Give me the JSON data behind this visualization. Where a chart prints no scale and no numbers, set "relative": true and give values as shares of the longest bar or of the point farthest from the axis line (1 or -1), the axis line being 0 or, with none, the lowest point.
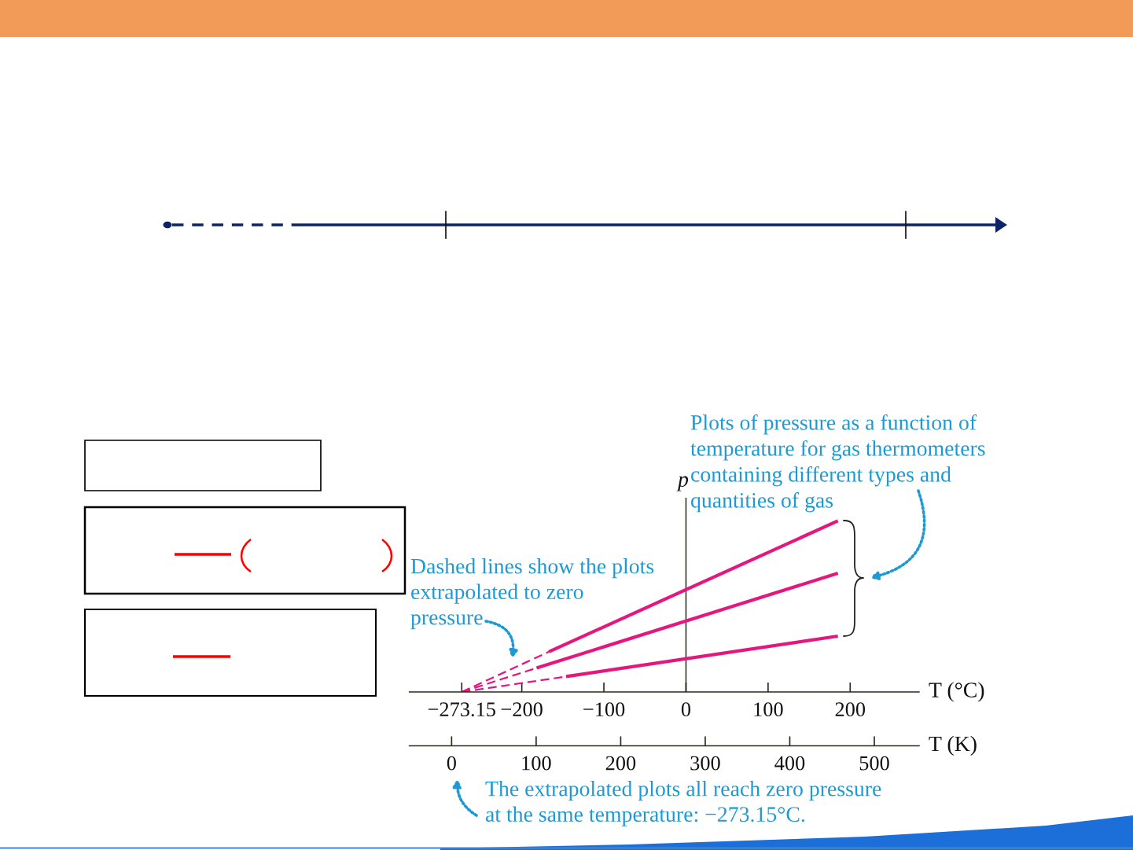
{
  "chart_data": {
    "type": "line",
    "relative": true,
    "grid": false,
    "xlabel": "T (°C)",
    "ylabel": "p",
    "x2label": "T (K)",
    "xlim": [
      -337,
      284
    ],
    "xticks": [
      {
        "value": -273.15,
        "label": "−273.15"
      },
      {
        "value": -200,
        "label": "−200"
      },
      {
        "value": -100,
        "label": "−100"
      },
      0,
      100,
      200
    ],
    "x2lim": [
      -50,
      553
    ],
    "x2ticks": [
      0,
      100,
      200,
      300,
      400,
      500
    ],
    "series": [
      {
        "color": "#e5177e",
        "line_style": "dashed",
        "x": [
          -273.15,
          -167
        ],
        "values": [
          0,
          0.235
        ]
      },
      {
        "color": "#e5177e",
        "line_style": "solid",
        "x": [
          -167,
          185
        ],
        "values": [
          0.235,
          1
        ]
      },
      {
        "color": "#e5177e",
        "line_style": "dashed",
        "x": [
          -273.15,
          -182
        ],
        "values": [
          0,
          0.14
        ]
      },
      {
        "color": "#e5177e",
        "line_style": "solid",
        "x": [
          -182,
          185
        ],
        "values": [
          0.14,
          0.694
        ]
      },
      {
        "color": "#e5177e",
        "line_style": "dashed",
        "x": [
          -273.15,
          -146
        ],
        "values": [
          0,
          0.09
        ]
      },
      {
        "color": "#e5177e",
        "line_style": "solid",
        "x": [
          -146,
          185
        ],
        "values": [
          0.09,
          0.326
        ]
      }
    ],
    "annotations": [
      "Plots of pressure as a function of\ntemperature for gas thermometers\ncontaining different types and\nquantities of gas",
      "Dashed lines show the plots\nextrapolated to zero\npressure",
      "The extrapolated plots all reach zero pressure\nat the same temperature: −273.15°C."
    ]
  }
}
